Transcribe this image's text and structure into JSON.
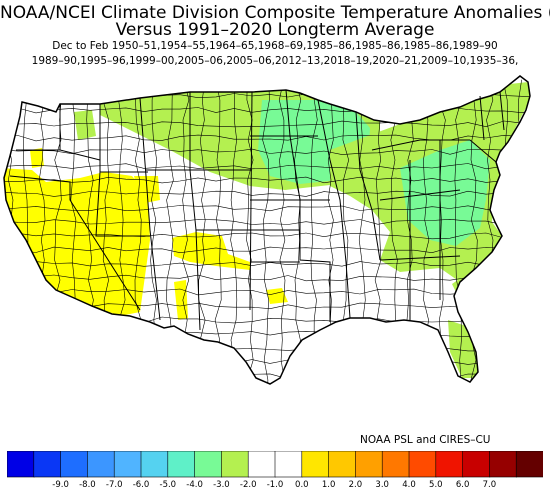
{
  "title_line1": "NOAA/NCEI Climate Division Composite Temperature Anomalies (F)",
  "title_line2": "Versus 1991–2020 Longterm Average",
  "subtitle_line1": "Dec to Feb   1950–51,1954–55,1964–65,1968–69,1985–86,1985–86,1985–86,1989–90",
  "subtitle_line2": "1989–90,1995–96,1999–00,2005–06,2005–06,2012–13,2018–19,2020–21,2009–10,1935–36,",
  "credit": "NOAA PSL and CIRES–CU",
  "legend": {
    "ticks": [
      "-9.0",
      "-8.0",
      "-7.0",
      "-6.0",
      "-5.0",
      "-4.0",
      "-3.0",
      "-2.0",
      "-1.0",
      "0.0",
      "1.0",
      "2.0",
      "3.0",
      "4.0",
      "5.0",
      "6.0",
      "7.0"
    ],
    "colors": [
      "#0000e6",
      "#0a37f5",
      "#1e6eff",
      "#3c96ff",
      "#50b4ff",
      "#55d2f0",
      "#5ff0c8",
      "#78fa96",
      "#b4f050",
      "#ffffff",
      "#ffffff",
      "#ffe600",
      "#ffc800",
      "#ffa000",
      "#ff7800",
      "#ff4b00",
      "#f01400",
      "#c80000",
      "#960000",
      "#640000"
    ]
  },
  "map": {
    "region_colors": {
      "outline": "#000000",
      "neutral": "#ffffff",
      "light_green": "#b4f050",
      "green": "#78fa96",
      "yellow": "#ffff00"
    }
  }
}
